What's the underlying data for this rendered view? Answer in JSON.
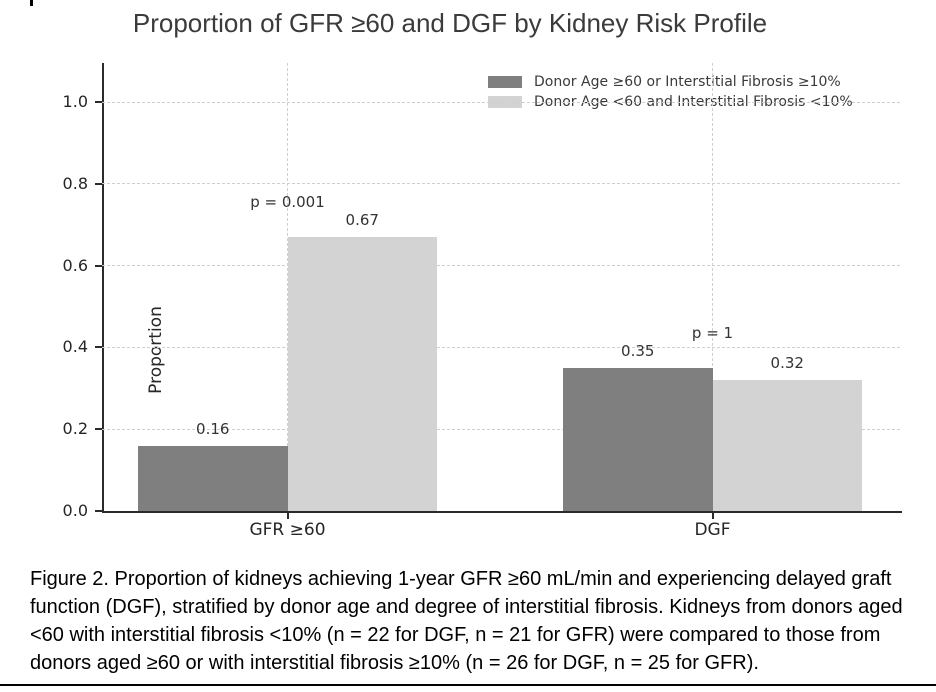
{
  "title": "Proportion of GFR ≥60 and DGF by Kidney Risk Profile",
  "chart_data": {
    "type": "bar",
    "title": "Proportion of GFR ≥60 and DGF by Kidney Risk Profile",
    "categories": [
      "GFR ≥60",
      "DGF"
    ],
    "series": [
      {
        "name": "Donor Age ≥60 or Interstitial Fibrosis ≥10%",
        "color": "#7f7f7f",
        "values": [
          0.16,
          0.35
        ]
      },
      {
        "name": "Donor Age <60 and Interstitial Fibrosis <10%",
        "color": "#d3d3d3",
        "values": [
          0.67,
          0.32
        ]
      }
    ],
    "annotations": [
      {
        "category": "GFR ≥60",
        "text": "p = 0.001"
      },
      {
        "category": "DGF",
        "text": "p = 1"
      }
    ],
    "xlabel": "",
    "ylabel": "Proportion",
    "yticks": [
      0.0,
      0.2,
      0.4,
      0.6,
      0.8,
      1.0
    ],
    "ylim": [
      0,
      1.095
    ],
    "grid": true,
    "grid_style": "dashed",
    "legend_position": "upper right"
  },
  "caption": "Figure 2. Proportion of kidneys achieving 1-year GFR ≥60 mL/min and experiencing delayed graft function (DGF), stratified by donor age and degree of interstitial fibrosis. Kidneys from donors aged <60 with interstitial fibrosis <10% (n = 22 for DGF, n = 21 for GFR) were compared to those from donors aged ≥60 or with interstitial fibrosis ≥10% (n = 26 for DGF, n = 25 for GFR)."
}
